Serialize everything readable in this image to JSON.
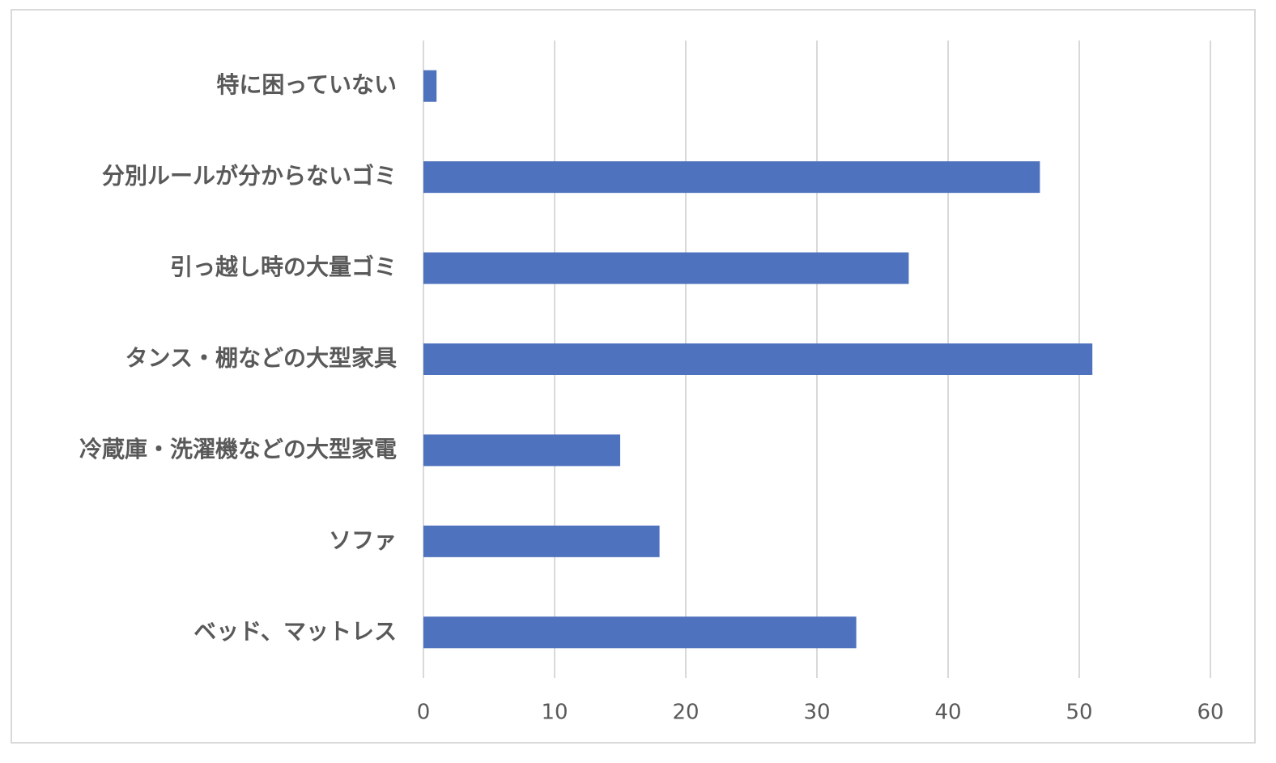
{
  "chart_data": {
    "type": "bar",
    "orientation": "horizontal",
    "categories": [
      "特に困っていない",
      "分別ルールが分からないゴミ",
      "引っ越し時の大量ゴミ",
      "タンス・棚などの大型家具",
      "冷蔵庫・洗濯機などの大型家電",
      "ソファ",
      "ベッド、マットレス"
    ],
    "values": [
      1,
      47,
      37,
      51,
      15,
      18,
      33
    ],
    "xlim": [
      0,
      60
    ],
    "xticks": [
      "0",
      "10",
      "20",
      "30",
      "40",
      "50",
      "60"
    ],
    "title": "",
    "xlabel": "",
    "ylabel": "",
    "grid": "vertical",
    "legend": "none",
    "bar_color": "#4f72be",
    "grid_color": "#d9d9d9",
    "text_color": "#595959"
  }
}
